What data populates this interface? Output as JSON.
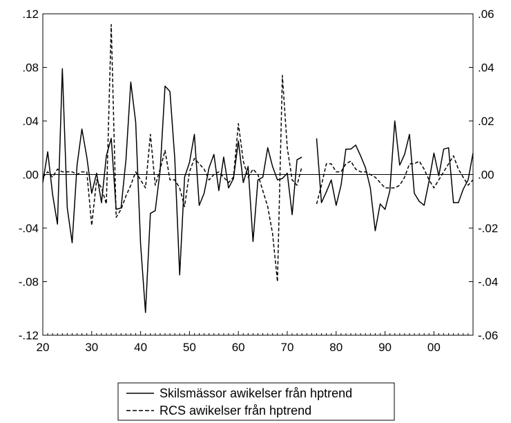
{
  "chart_data": {
    "type": "line",
    "title": "",
    "xlabel": "",
    "ylabel_left": "",
    "ylabel_right": "",
    "x_ticks": [
      "20",
      "30",
      "40",
      "50",
      "60",
      "70",
      "80",
      "90",
      "00"
    ],
    "x_tick_years": [
      1920,
      1930,
      1940,
      1950,
      1960,
      1970,
      1980,
      1990,
      2000
    ],
    "xlim": [
      1920,
      2008
    ],
    "y_left_ticks": [
      ".12",
      ".08",
      ".04",
      ".00",
      "-.04",
      "-.08",
      "-.12"
    ],
    "y_left_values": [
      0.12,
      0.08,
      0.04,
      0.0,
      -0.04,
      -0.08,
      -0.12
    ],
    "ylim_left": [
      -0.12,
      0.12
    ],
    "y_right_ticks": [
      ".06",
      ".04",
      ".02",
      ".00",
      "-.02",
      "-.04",
      "-.06"
    ],
    "y_right_values": [
      0.06,
      0.04,
      0.02,
      0.0,
      -0.02,
      -0.04,
      -0.06
    ],
    "ylim_right": [
      -0.06,
      0.06
    ],
    "zero_line": true,
    "grid": false,
    "legend_position": "bottom-center",
    "series": [
      {
        "name": "Skilsmässor awikelser från hptrend",
        "axis": "left",
        "style": "solid",
        "color": "#000000",
        "x": [
          1920,
          1921,
          1922,
          1923,
          1924,
          1925,
          1926,
          1927,
          1928,
          1929,
          1930,
          1931,
          1932,
          1933,
          1934,
          1935,
          1936,
          1937,
          1938,
          1939,
          1940,
          1941,
          1942,
          1943,
          1944,
          1945,
          1946,
          1947,
          1948,
          1949,
          1950,
          1951,
          1952,
          1953,
          1954,
          1955,
          1956,
          1957,
          1958,
          1959,
          1960,
          1961,
          1962,
          1963,
          1964,
          1965,
          1966,
          1967,
          1968,
          1969,
          1970,
          1971,
          1972,
          1973,
          1974,
          1975,
          1976,
          1977,
          1978,
          1979,
          1980,
          1981,
          1982,
          1983,
          1984,
          1985,
          1986,
          1987,
          1988,
          1989,
          1990,
          1991,
          1992,
          1993,
          1994,
          1995,
          1996,
          1997,
          1998,
          1999,
          2000,
          2001,
          2002,
          2003,
          2004,
          2005,
          2006,
          2007,
          2008
        ],
        "values": [
          -0.006,
          0.017,
          -0.015,
          -0.037,
          0.079,
          -0.025,
          -0.051,
          0.007,
          0.034,
          0.013,
          -0.014,
          0.001,
          -0.021,
          0.014,
          0.027,
          -0.026,
          -0.025,
          0.011,
          0.069,
          0.039,
          -0.052,
          -0.103,
          -0.029,
          -0.027,
          0.003,
          0.066,
          0.062,
          0.012,
          -0.075,
          -0.002,
          0.009,
          0.03,
          -0.023,
          -0.014,
          0.005,
          0.015,
          -0.012,
          0.013,
          -0.01,
          -0.003,
          0.025,
          -0.006,
          0.006,
          -0.05,
          -0.004,
          -0.002,
          0.02,
          0.006,
          -0.004,
          -0.003,
          0.001,
          -0.03,
          0.011,
          0.013,
          null,
          null,
          0.027,
          -0.021,
          -0.013,
          -0.004,
          -0.023,
          -0.008,
          0.019,
          0.019,
          0.022,
          0.014,
          0.005,
          -0.01,
          -0.042,
          -0.022,
          -0.026,
          -0.012,
          0.04,
          0.007,
          0.015,
          0.03,
          -0.014,
          -0.02,
          -0.023,
          -0.005,
          0.016,
          -0.001,
          0.019,
          0.02,
          -0.021,
          -0.021,
          -0.011,
          -0.004,
          0.016
        ]
      },
      {
        "name": "RCS awikelser från hptrend",
        "axis": "right",
        "style": "dashed",
        "color": "#000000",
        "x": [
          1920,
          1921,
          1922,
          1923,
          1924,
          1925,
          1926,
          1927,
          1928,
          1929,
          1930,
          1931,
          1932,
          1933,
          1934,
          1935,
          1936,
          1937,
          1938,
          1939,
          1940,
          1941,
          1942,
          1943,
          1944,
          1945,
          1946,
          1947,
          1948,
          1949,
          1950,
          1951,
          1952,
          1953,
          1954,
          1955,
          1956,
          1957,
          1958,
          1959,
          1960,
          1961,
          1962,
          1963,
          1964,
          1965,
          1966,
          1967,
          1968,
          1969,
          1970,
          1971,
          1972,
          1973,
          1974,
          1975,
          1976,
          1977,
          1978,
          1979,
          1980,
          1981,
          1982,
          1983,
          1984,
          1985,
          1986,
          1987,
          1988,
          1989,
          1990,
          1991,
          1992,
          1993,
          1994,
          1995,
          1996,
          1997,
          1998,
          1999,
          2000,
          2001,
          2002,
          2003,
          2004,
          2005,
          2006,
          2007,
          2008
        ],
        "values": [
          -0.001,
          0.001,
          -0.001,
          0.002,
          0.001,
          0.001,
          0.001,
          0.0,
          0.001,
          0.001,
          -0.019,
          -0.002,
          -0.005,
          -0.011,
          0.056,
          -0.016,
          -0.013,
          -0.008,
          -0.004,
          0.001,
          -0.002,
          -0.005,
          0.015,
          -0.004,
          0.002,
          0.009,
          -0.002,
          -0.002,
          -0.005,
          -0.012,
          0.001,
          0.006,
          0.004,
          0.002,
          -0.002,
          0.0,
          0.001,
          -0.001,
          -0.003,
          -0.001,
          0.019,
          0.005,
          -0.001,
          0.002,
          0.0,
          -0.006,
          -0.012,
          -0.022,
          -0.04,
          0.037,
          0.01,
          -0.002,
          -0.004,
          0.003,
          null,
          null,
          -0.011,
          -0.004,
          0.004,
          0.004,
          0.001,
          0.001,
          0.004,
          0.005,
          0.002,
          0.001,
          0.001,
          0.0,
          -0.001,
          -0.003,
          -0.005,
          -0.005,
          -0.005,
          -0.004,
          -0.001,
          0.004,
          0.004,
          0.005,
          0.002,
          -0.002,
          -0.005,
          -0.002,
          0.001,
          0.004,
          0.007,
          0.002,
          -0.001,
          -0.004,
          -0.002
        ]
      }
    ]
  },
  "legend": {
    "items": [
      {
        "label": "Skilsmässor awikelser från hptrend",
        "style": "solid"
      },
      {
        "label": "RCS awikelser från hptrend",
        "style": "dashed"
      }
    ]
  }
}
